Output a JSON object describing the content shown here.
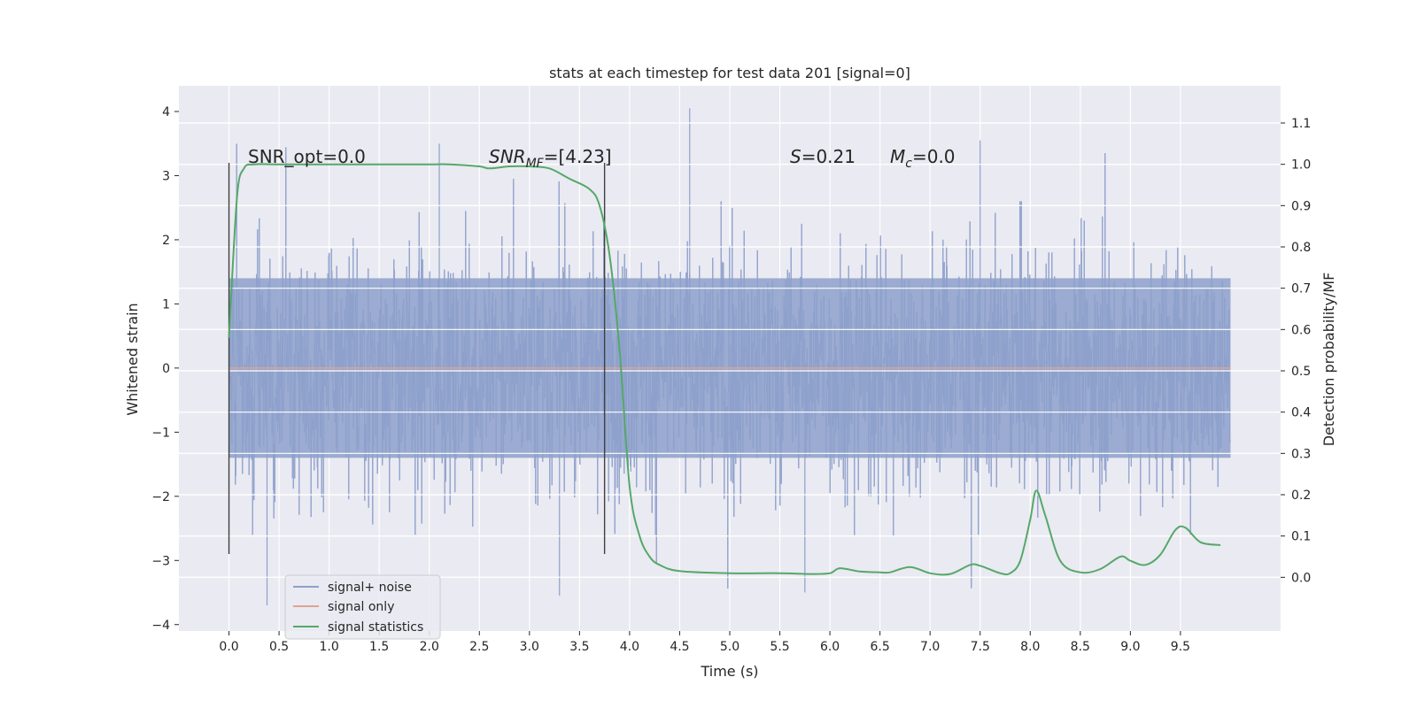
{
  "chart_data": {
    "type": "line",
    "title": "stats at each timestep for test data 201 [signal=0]",
    "xlabel": "Time (s)",
    "ylabel": "Whitened strain",
    "y2label": "Detection probability/MF",
    "xlim": [
      -0.5,
      10.5
    ],
    "ylim": [
      -4.1,
      4.4
    ],
    "y2lim": [
      -0.13,
      1.19
    ],
    "x_ticks": [
      "0.0",
      "0.5",
      "1.0",
      "1.5",
      "2.0",
      "2.5",
      "3.0",
      "3.5",
      "4.0",
      "4.5",
      "5.0",
      "5.5",
      "6.0",
      "6.5",
      "7.0",
      "7.5",
      "8.0",
      "8.5",
      "9.0",
      "9.5"
    ],
    "y_ticks": [
      "4",
      "3",
      "2",
      "1",
      "0",
      "−1",
      "−2",
      "−3",
      "−4"
    ],
    "y2_ticks": [
      "1.1",
      "1.0",
      "0.9",
      "0.8",
      "0.7",
      "0.6",
      "0.5",
      "0.4",
      "0.3",
      "0.2",
      "0.1",
      "0.0"
    ],
    "grid": true,
    "legend_position": "bottom-left",
    "annotations": {
      "snr_opt": "SNR_opt=0.0",
      "snr_mf": [
        "SNR",
        "MF",
        "=[4.23]"
      ],
      "s_stat": [
        "S",
        "=0.21"
      ],
      "mc": [
        "M",
        "c",
        "=0.0"
      ]
    },
    "vertical_lines": [
      0.0,
      3.75
    ],
    "series": [
      {
        "name": "signal+ noise",
        "color": "#8da0cb",
        "axis": "left",
        "kind": "noise",
        "x_range": [
          0.0,
          10.0
        ],
        "envelope": {
          "core": 1.4,
          "typical_peak": 2.6,
          "max": 4.05,
          "min": -3.7
        }
      },
      {
        "name": "signal only",
        "color": "#e1a290",
        "axis": "left",
        "x": [
          0.0,
          10.0
        ],
        "y": [
          0.0,
          0.0
        ]
      },
      {
        "name": "signal statistics",
        "color": "#55a868",
        "axis": "right",
        "x": [
          0.0,
          0.08,
          0.15,
          0.25,
          0.5,
          1.0,
          1.5,
          2.0,
          2.2,
          2.5,
          2.6,
          2.8,
          3.0,
          3.2,
          3.4,
          3.6,
          3.7,
          3.8,
          3.9,
          4.0,
          4.1,
          4.2,
          4.3,
          4.5,
          5.0,
          5.5,
          5.8,
          6.0,
          6.1,
          6.3,
          6.5,
          6.6,
          6.8,
          7.0,
          7.2,
          7.4,
          7.5,
          7.7,
          7.8,
          7.9,
          8.0,
          8.06,
          8.15,
          8.3,
          8.5,
          8.7,
          8.9,
          9.0,
          9.15,
          9.3,
          9.45,
          9.55,
          9.7,
          9.9
        ],
        "y": [
          0.58,
          0.92,
          0.99,
          1.0,
          1.0,
          1.0,
          1.0,
          1.0,
          1.0,
          0.995,
          0.99,
          0.995,
          0.995,
          0.99,
          0.965,
          0.94,
          0.9,
          0.78,
          0.55,
          0.22,
          0.1,
          0.05,
          0.03,
          0.015,
          0.01,
          0.01,
          0.008,
          0.01,
          0.022,
          0.014,
          0.012,
          0.012,
          0.025,
          0.01,
          0.008,
          0.03,
          0.028,
          0.01,
          0.01,
          0.04,
          0.14,
          0.21,
          0.15,
          0.04,
          0.012,
          0.02,
          0.05,
          0.04,
          0.03,
          0.055,
          0.115,
          0.12,
          0.085,
          0.078
        ]
      }
    ]
  }
}
